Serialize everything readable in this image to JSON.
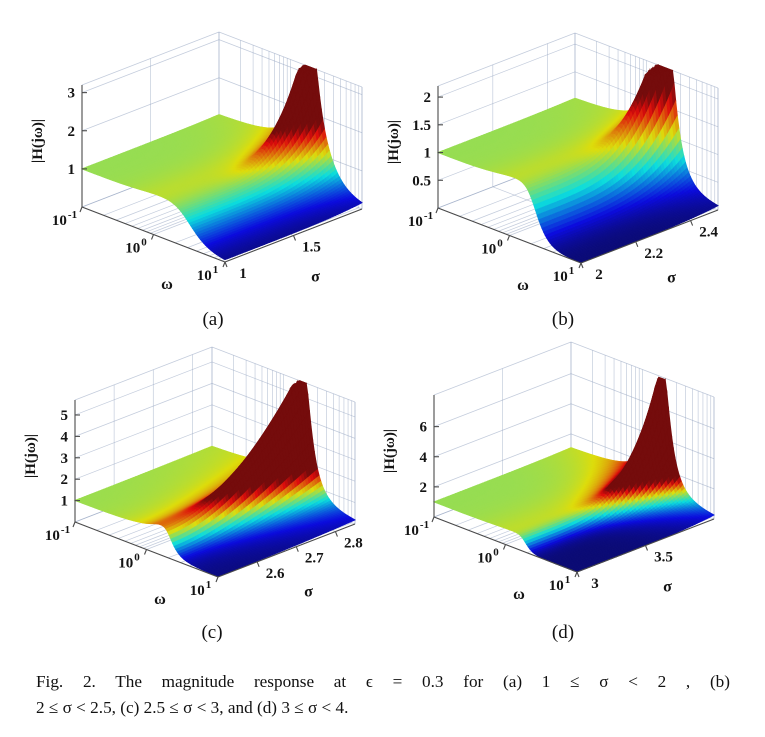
{
  "figure": {
    "name": "Fig. 2",
    "caption_line1": "Fig. 2.   The magnitude response at ϵ = 0.3 for (a) 1 ≤ σ < 2 , (b)",
    "caption_line2": "2 ≤ σ < 2.5, (c) 2.5 ≤ σ < 3, and (d) 3 ≤ σ < 4."
  },
  "chart_data": [
    {
      "key": "a",
      "panel": "(a)",
      "type": "surface3d",
      "xlabel": "ω",
      "ylabel": "σ",
      "zlabel": "|H(jω)|",
      "omega_axis": {
        "scale": "log",
        "min_exp": -1,
        "max_exp": 1,
        "ticks": [
          {
            "u": -1,
            "label": "10^-1"
          },
          {
            "u": 0,
            "label": "10^0"
          },
          {
            "u": 1,
            "label": "10^1"
          }
        ]
      },
      "sigma_axis": {
        "min": 1,
        "max": 2,
        "ticks": [
          {
            "v": 1,
            "label": "1"
          },
          {
            "v": 1.5,
            "label": "1.5"
          }
        ]
      },
      "z_axis": {
        "max": 3.2,
        "ticks": [
          {
            "v": 1,
            "label": "1"
          },
          {
            "v": 2,
            "label": "2"
          },
          {
            "v": 3,
            "label": "3"
          }
        ]
      },
      "surface": {
        "plateau": 1,
        "cutoff_omega": 2.8,
        "rolloff_order": 2.2,
        "peak_log_omega": 0.28,
        "peak_width_log": 0.13,
        "peak_amp_base": 0,
        "peak_amp_max": 3.3,
        "peak_growth_exp": 4.5,
        "z_clip": 3.2,
        "color_axis_max": 1.85
      }
    },
    {
      "key": "b",
      "panel": "(b)",
      "type": "surface3d",
      "xlabel": "ω",
      "ylabel": "σ",
      "zlabel": "|H(jω)|",
      "omega_axis": {
        "scale": "log",
        "min_exp": -1,
        "max_exp": 1,
        "ticks": [
          {
            "u": -1,
            "label": "10^-1"
          },
          {
            "u": 0,
            "label": "10^0"
          },
          {
            "u": 1,
            "label": "10^1"
          }
        ]
      },
      "sigma_axis": {
        "min": 2,
        "max": 2.5,
        "ticks": [
          {
            "v": 2,
            "label": "2"
          },
          {
            "v": 2.2,
            "label": "2.2"
          },
          {
            "v": 2.4,
            "label": "2.4"
          }
        ]
      },
      "z_axis": {
        "max": 2.2,
        "ticks": [
          {
            "v": 0.5,
            "label": "0.5"
          },
          {
            "v": 1,
            "label": "1"
          },
          {
            "v": 1.5,
            "label": "1.5"
          },
          {
            "v": 2,
            "label": "2"
          }
        ]
      },
      "surface": {
        "plateau": 1,
        "cutoff_omega": 2.1,
        "rolloff_order": 3.5,
        "peak_log_omega": 0.28,
        "peak_width_log": 0.13,
        "peak_amp_base": 0,
        "peak_amp_max": 2.35,
        "peak_growth_exp": 4,
        "z_clip": 2.2,
        "color_axis_max": 1.85
      }
    },
    {
      "key": "c",
      "panel": "(c)",
      "type": "surface3d",
      "xlabel": "ω",
      "ylabel": "σ",
      "zlabel": "|H(jω)|",
      "omega_axis": {
        "scale": "log",
        "min_exp": -1,
        "max_exp": 1,
        "ticks": [
          {
            "u": -1,
            "label": "10^-1"
          },
          {
            "u": 0,
            "label": "10^0"
          },
          {
            "u": 1,
            "label": "10^1"
          }
        ]
      },
      "sigma_axis": {
        "min": 2.5,
        "max": 2.85,
        "ticks": [
          {
            "v": 2.6,
            "label": "2.6"
          },
          {
            "v": 2.7,
            "label": "2.7"
          },
          {
            "v": 2.8,
            "label": "2.8"
          }
        ]
      },
      "z_axis": {
        "max": 5.7,
        "ticks": [
          {
            "v": 1,
            "label": "1"
          },
          {
            "v": 2,
            "label": "2"
          },
          {
            "v": 3,
            "label": "3"
          },
          {
            "v": 4,
            "label": "4"
          },
          {
            "v": 5,
            "label": "5"
          }
        ]
      },
      "surface": {
        "plateau": 1,
        "cutoff_omega": 1.6,
        "rolloff_order": 5,
        "peak_log_omega": 0.28,
        "peak_width_log": 0.13,
        "peak_amp_base": 0.85,
        "peak_amp_max": 5.2,
        "peak_growth_exp": 2,
        "z_clip": 5.7,
        "color_axis_max": 1.85
      }
    },
    {
      "key": "d",
      "panel": "(d)",
      "type": "surface3d",
      "xlabel": "ω",
      "ylabel": "σ",
      "zlabel": "|H(jω)|",
      "omega_axis": {
        "scale": "log",
        "min_exp": -1,
        "max_exp": 1,
        "ticks": [
          {
            "u": -1,
            "label": "10^-1"
          },
          {
            "u": 0,
            "label": "10^0"
          },
          {
            "u": 1,
            "label": "10^1"
          }
        ]
      },
      "sigma_axis": {
        "min": 3,
        "max": 4,
        "ticks": [
          {
            "v": 3,
            "label": "3"
          },
          {
            "v": 3.5,
            "label": "3.5"
          }
        ]
      },
      "z_axis": {
        "max": 8.1,
        "ticks": [
          {
            "v": 2,
            "label": "2"
          },
          {
            "v": 4,
            "label": "4"
          },
          {
            "v": 6,
            "label": "6"
          }
        ]
      },
      "surface": {
        "plateau": 1,
        "cutoff_omega": 1.8,
        "rolloff_order": 6,
        "peak_log_omega": 0.28,
        "peak_width_log": 0.13,
        "peak_amp_base": 0,
        "peak_amp_max": 8.4,
        "peak_growth_exp": 4.5,
        "z_clip": 8.0,
        "color_axis_max": 1.85
      }
    }
  ]
}
